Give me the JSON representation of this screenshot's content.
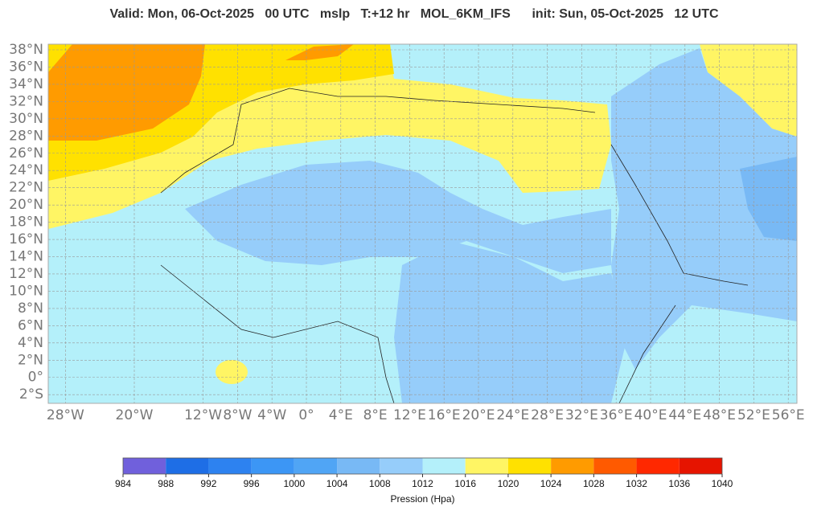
{
  "title": "Valid: Mon, 06-Oct-2025   00 UTC   mslp   T:+12 hr   MOL_6KM_IFS      init: Sun, 05-Oct-2025   12 UTC",
  "lat_ticks": [
    {
      "value": 38,
      "label": "38°N"
    },
    {
      "value": 36,
      "label": "36°N"
    },
    {
      "value": 34,
      "label": "34°N"
    },
    {
      "value": 32,
      "label": "32°N"
    },
    {
      "value": 30,
      "label": "30°N"
    },
    {
      "value": 28,
      "label": "28°N"
    },
    {
      "value": 26,
      "label": "26°N"
    },
    {
      "value": 24,
      "label": "24°N"
    },
    {
      "value": 22,
      "label": "22°N"
    },
    {
      "value": 20,
      "label": "20°N"
    },
    {
      "value": 18,
      "label": "18°N"
    },
    {
      "value": 16,
      "label": "16°N"
    },
    {
      "value": 14,
      "label": "14°N"
    },
    {
      "value": 12,
      "label": "12°N"
    },
    {
      "value": 10,
      "label": "10°N"
    },
    {
      "value": 8,
      "label": "8°N"
    },
    {
      "value": 6,
      "label": "6°N"
    },
    {
      "value": 4,
      "label": "4°N"
    },
    {
      "value": 2,
      "label": "2°N"
    },
    {
      "value": 0,
      "label": "0°"
    },
    {
      "value": -2,
      "label": "2°S"
    }
  ],
  "lon_ticks": [
    {
      "value": -28,
      "label": "28°W"
    },
    {
      "value": -20,
      "label": "20°W"
    },
    {
      "value": -12,
      "label": "12°W"
    },
    {
      "value": -8,
      "label": "8°W"
    },
    {
      "value": -4,
      "label": "4°W"
    },
    {
      "value": 0,
      "label": "0°"
    },
    {
      "value": 4,
      "label": "4°E"
    },
    {
      "value": 8,
      "label": "8°E"
    },
    {
      "value": 12,
      "label": "12°E"
    },
    {
      "value": 16,
      "label": "16°E"
    },
    {
      "value": 20,
      "label": "20°E"
    },
    {
      "value": 24,
      "label": "24°E"
    },
    {
      "value": 28,
      "label": "28°E"
    },
    {
      "value": 32,
      "label": "32°E"
    },
    {
      "value": 36,
      "label": "36°E"
    },
    {
      "value": 40,
      "label": "40°E"
    },
    {
      "value": 44,
      "label": "44°E"
    },
    {
      "value": 48,
      "label": "48°E"
    },
    {
      "value": 52,
      "label": "52°E"
    },
    {
      "value": 56,
      "label": "56°E"
    }
  ],
  "colorbar": {
    "ticks": [
      984,
      988,
      992,
      996,
      1000,
      1004,
      1008,
      1012,
      1016,
      1020,
      1024,
      1028,
      1032,
      1036,
      1040
    ],
    "colors": [
      "#7060dc",
      "#1e6ee6",
      "#2d82f0",
      "#3c96f5",
      "#50a5f5",
      "#78b9f5",
      "#96cdfa",
      "#b4f0fa",
      "#fff564",
      "#ffe100",
      "#ff9b00",
      "#ff5a00",
      "#ff2800",
      "#e61400"
    ],
    "label": "Pression (Hpa)"
  }
}
